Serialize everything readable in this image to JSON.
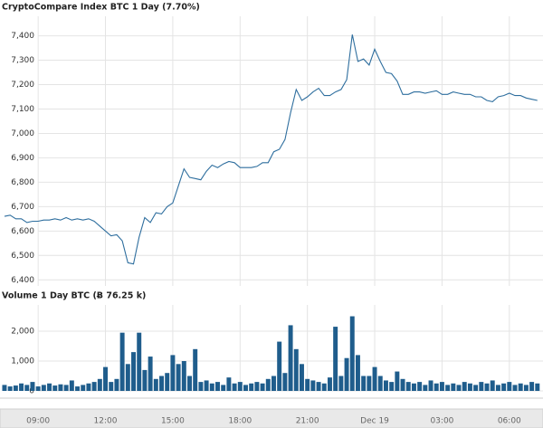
{
  "chart_data": [
    {
      "type": "line",
      "title": "CryptoCompare Index BTC 1 Day (7.70%)",
      "color": "#2e6e9e",
      "grid": true,
      "xlim": [
        7.3,
        31.5
      ],
      "ylim": [
        6375,
        7480
      ],
      "xticks": [
        9,
        12,
        15,
        18,
        21,
        24,
        27,
        30
      ],
      "yticks": [
        {
          "value": 6400,
          "label": "6,400"
        },
        {
          "value": 6500,
          "label": "6,500"
        },
        {
          "value": 6600,
          "label": "6,600"
        },
        {
          "value": 6700,
          "label": "6,700"
        },
        {
          "value": 6800,
          "label": "6,800"
        },
        {
          "value": 6900,
          "label": "6,900"
        },
        {
          "value": 7000,
          "label": "7,000"
        },
        {
          "value": 7100,
          "label": "7,100"
        },
        {
          "value": 7200,
          "label": "7,200"
        },
        {
          "value": 7300,
          "label": "7,300"
        },
        {
          "value": 7400,
          "label": "7,400"
        }
      ],
      "x": [
        7.5,
        7.75,
        8,
        8.25,
        8.5,
        8.75,
        9,
        9.25,
        9.5,
        9.75,
        10,
        10.25,
        10.5,
        10.75,
        11,
        11.25,
        11.5,
        11.75,
        12,
        12.25,
        12.5,
        12.75,
        13,
        13.25,
        13.5,
        13.75,
        14,
        14.25,
        14.5,
        14.75,
        15,
        15.25,
        15.5,
        15.75,
        16,
        16.25,
        16.5,
        16.75,
        17,
        17.25,
        17.5,
        17.75,
        18,
        18.25,
        18.5,
        18.75,
        19,
        19.25,
        19.5,
        19.75,
        20,
        20.25,
        20.5,
        20.75,
        21,
        21.25,
        21.5,
        21.75,
        22,
        22.25,
        22.5,
        22.75,
        23,
        23.25,
        23.5,
        23.75,
        24,
        24.25,
        24.5,
        24.75,
        25,
        25.25,
        25.5,
        25.75,
        26,
        26.25,
        26.5,
        26.75,
        27,
        27.25,
        27.5,
        27.75,
        28,
        28.25,
        28.5,
        28.75,
        29,
        29.25,
        29.5,
        29.75,
        30,
        30.25,
        30.5,
        30.75,
        31,
        31.25
      ],
      "values": [
        6660,
        6665,
        6650,
        6650,
        6635,
        6640,
        6640,
        6645,
        6645,
        6650,
        6645,
        6655,
        6645,
        6650,
        6645,
        6650,
        6640,
        6620,
        6600,
        6580,
        6585,
        6560,
        6470,
        6465,
        6575,
        6655,
        6635,
        6675,
        6670,
        6700,
        6715,
        6785,
        6855,
        6820,
        6815,
        6810,
        6845,
        6870,
        6860,
        6875,
        6885,
        6880,
        6860,
        6860,
        6860,
        6865,
        6880,
        6880,
        6925,
        6935,
        6975,
        7085,
        7180,
        7135,
        7150,
        7170,
        7185,
        7155,
        7155,
        7170,
        7180,
        7220,
        7405,
        7295,
        7305,
        7280,
        7345,
        7295,
        7250,
        7245,
        7215,
        7160,
        7160,
        7170,
        7170,
        7165,
        7170,
        7175,
        7160,
        7160,
        7170,
        7165,
        7160,
        7160,
        7150,
        7150,
        7135,
        7130,
        7150,
        7155,
        7165,
        7155,
        7155,
        7145,
        7140,
        7135
      ]
    },
    {
      "type": "bar",
      "title": "Volume 1 Day BTC (Ƀ 76.25 k)",
      "color": "#1f5d8c",
      "grid": true,
      "xlim": [
        7.3,
        31.5
      ],
      "ylim": [
        0,
        2880
      ],
      "xticks": [
        {
          "value": 9,
          "label": "09:00"
        },
        {
          "value": 12,
          "label": "12:00"
        },
        {
          "value": 15,
          "label": "15:00"
        },
        {
          "value": 18,
          "label": "18:00"
        },
        {
          "value": 21,
          "label": "21:00"
        },
        {
          "value": 24,
          "label": "Dec 19"
        },
        {
          "value": 27,
          "label": "03:00"
        },
        {
          "value": 30,
          "label": "06:00"
        }
      ],
      "yticks": [
        0,
        {
          "value": 1000,
          "label": "1,000"
        },
        {
          "value": 2000,
          "label": "2,000"
        }
      ],
      "x": [
        7.5,
        7.75,
        8,
        8.25,
        8.5,
        8.75,
        9,
        9.25,
        9.5,
        9.75,
        10,
        10.25,
        10.5,
        10.75,
        11,
        11.25,
        11.5,
        11.75,
        12,
        12.25,
        12.5,
        12.75,
        13,
        13.25,
        13.5,
        13.75,
        14,
        14.25,
        14.5,
        14.75,
        15,
        15.25,
        15.5,
        15.75,
        16,
        16.25,
        16.5,
        16.75,
        17,
        17.25,
        17.5,
        17.75,
        18,
        18.25,
        18.5,
        18.75,
        19,
        19.25,
        19.5,
        19.75,
        20,
        20.25,
        20.5,
        20.75,
        21,
        21.25,
        21.5,
        21.75,
        22,
        22.25,
        22.5,
        22.75,
        23,
        23.25,
        23.5,
        23.75,
        24,
        24.25,
        24.5,
        24.75,
        25,
        25.25,
        25.5,
        25.75,
        26,
        26.25,
        26.5,
        26.75,
        27,
        27.25,
        27.5,
        27.75,
        28,
        28.25,
        28.5,
        28.75,
        29,
        29.25,
        29.5,
        29.75,
        30,
        30.25,
        30.5,
        30.75,
        31,
        31.25
      ],
      "values": [
        200,
        150,
        180,
        250,
        200,
        300,
        150,
        200,
        250,
        180,
        220,
        200,
        350,
        150,
        200,
        250,
        300,
        400,
        800,
        300,
        400,
        1950,
        900,
        1300,
        1950,
        700,
        1150,
        400,
        500,
        600,
        1200,
        900,
        1000,
        500,
        1400,
        300,
        350,
        250,
        300,
        200,
        450,
        250,
        300,
        200,
        250,
        300,
        250,
        400,
        500,
        1650,
        600,
        2200,
        1400,
        900,
        400,
        350,
        300,
        250,
        450,
        2150,
        500,
        1100,
        2500,
        1200,
        500,
        500,
        800,
        500,
        350,
        300,
        650,
        400,
        300,
        250,
        300,
        200,
        350,
        250,
        300,
        200,
        250,
        200,
        300,
        250,
        200,
        300,
        250,
        350,
        200,
        250,
        300,
        200,
        250,
        200,
        300,
        250
      ]
    }
  ]
}
